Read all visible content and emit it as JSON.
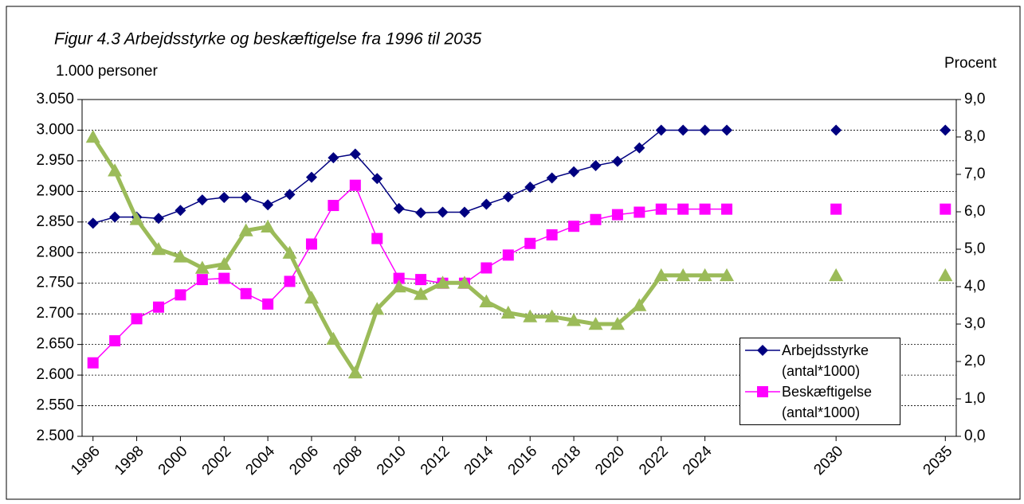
{
  "chart_data": {
    "type": "line",
    "title": "Figur 4.3 Arbejdsstyrke og beskæftigelse fra 1996 til 2035",
    "y_label": "1.000 personer",
    "y2_label": "Procent",
    "x": [
      1996,
      1997,
      1998,
      1999,
      2000,
      2001,
      2002,
      2003,
      2004,
      2005,
      2006,
      2007,
      2008,
      2009,
      2010,
      2011,
      2012,
      2013,
      2014,
      2015,
      2016,
      2017,
      2018,
      2019,
      2020,
      2021,
      2022,
      2023,
      2024,
      2025,
      2026,
      2027,
      2028,
      2029,
      2030,
      2031,
      2032,
      2033,
      2034,
      2035
    ],
    "xlim": [
      1995.5,
      2035.5
    ],
    "xticks": [
      1996,
      1998,
      2000,
      2002,
      2004,
      2006,
      2008,
      2010,
      2012,
      2014,
      2016,
      2018,
      2020,
      2022,
      2024,
      2030,
      2035
    ],
    "ylim": [
      2500,
      3050
    ],
    "yticks": [
      {
        "value": 2500,
        "label": "2.500"
      },
      {
        "value": 2550,
        "label": "2.550"
      },
      {
        "value": 2600,
        "label": "2.600"
      },
      {
        "value": 2650,
        "label": "2.650"
      },
      {
        "value": 2700,
        "label": "2.700"
      },
      {
        "value": 2750,
        "label": "2.750"
      },
      {
        "value": 2800,
        "label": "2.800"
      },
      {
        "value": 2850,
        "label": "2.850"
      },
      {
        "value": 2900,
        "label": "2.900"
      },
      {
        "value": 2950,
        "label": "2.950"
      },
      {
        "value": 3000,
        "label": "3.000"
      },
      {
        "value": 3050,
        "label": "3.050"
      }
    ],
    "y2lim": [
      0,
      9
    ],
    "y2ticks": [
      {
        "value": 0,
        "label": "0,0"
      },
      {
        "value": 1,
        "label": "1,0"
      },
      {
        "value": 2,
        "label": "2,0"
      },
      {
        "value": 3,
        "label": "3,0"
      },
      {
        "value": 4,
        "label": "4,0"
      },
      {
        "value": 5,
        "label": "5,0"
      },
      {
        "value": 6,
        "label": "6,0"
      },
      {
        "value": 7,
        "label": "7,0"
      },
      {
        "value": 8,
        "label": "8,0"
      },
      {
        "value": 9,
        "label": "9,0"
      }
    ],
    "grid": true,
    "legend_position": "lower right",
    "series": [
      {
        "name": "Arbejdsstyrke (antal*1000)",
        "color": "#000080",
        "marker": "diamond",
        "values": [
          2848,
          2858,
          2858,
          2856,
          2869,
          2886,
          2890,
          2890,
          2878,
          2895,
          2923,
          2955,
          2961,
          2921,
          2872,
          2865,
          2866,
          2866,
          2879,
          2891,
          2907,
          2922,
          2932,
          2942,
          2949,
          2971,
          3000,
          3000,
          3000,
          3000,
          null,
          null,
          null,
          null,
          3000,
          null,
          null,
          null,
          null,
          3000
        ]
      },
      {
        "name": "Beskæftigelse (antal*1000)",
        "color": "#ff00ff",
        "marker": "square",
        "values": [
          2620,
          2656,
          2692,
          2711,
          2731,
          2756,
          2758,
          2733,
          2716,
          2753,
          2814,
          2877,
          2910,
          2823,
          2758,
          2756,
          2750,
          2750,
          2775,
          2796,
          2815,
          2829,
          2843,
          2854,
          2862,
          2866,
          2871,
          2871,
          2871,
          2871,
          null,
          null,
          null,
          null,
          2871,
          null,
          null,
          null,
          null,
          2871
        ]
      },
      {
        "color": "#9bbb59",
        "marker": "triangle",
        "axis": "y2",
        "values": [
          8.0,
          7.1,
          5.8,
          5.0,
          4.8,
          4.5,
          4.6,
          5.5,
          5.6,
          4.9,
          3.7,
          2.6,
          1.7,
          3.4,
          4.0,
          3.8,
          4.1,
          4.1,
          3.6,
          3.3,
          3.2,
          3.2,
          3.1,
          3.0,
          3.0,
          3.5,
          4.3,
          4.3,
          4.3,
          4.3,
          null,
          null,
          null,
          null,
          4.3,
          null,
          null,
          null,
          null,
          4.3
        ]
      }
    ]
  }
}
